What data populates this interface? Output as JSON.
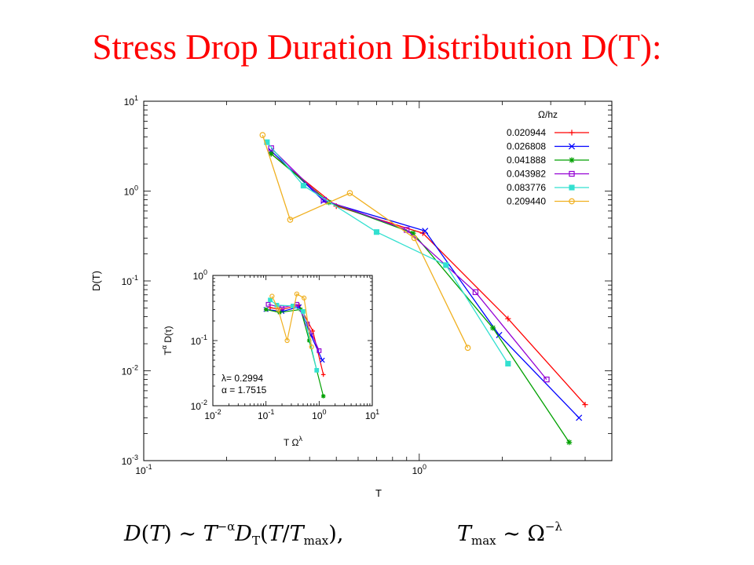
{
  "slide": {
    "title": "Stress Drop Duration Distribution D(T):"
  },
  "chart_data": [
    {
      "type": "line",
      "title": "",
      "xlabel": "T",
      "ylabel": "D(T)",
      "xscale": "log",
      "yscale": "log",
      "xlim": [
        0.1,
        5
      ],
      "ylim": [
        0.001,
        10
      ],
      "x_ticks": [
        {
          "value": 0.1,
          "base": "10",
          "exp": "-1"
        },
        {
          "value": 1,
          "base": "10",
          "exp": "0"
        }
      ],
      "y_ticks": [
        {
          "value": 10,
          "base": "10",
          "exp": "1"
        },
        {
          "value": 1,
          "base": "10",
          "exp": "0"
        },
        {
          "value": 0.1,
          "base": "10",
          "exp": "-1"
        },
        {
          "value": 0.01,
          "base": "10",
          "exp": "-2"
        },
        {
          "value": 0.001,
          "base": "10",
          "exp": "-3"
        }
      ],
      "grid": false,
      "legend": {
        "title": "Ω/hz",
        "position": "top-right"
      },
      "series": [
        {
          "name": "0.020944",
          "color": "#ff0000",
          "marker": "plus",
          "x": [
            0.29,
            0.5,
            1.03,
            2.1,
            4.0
          ],
          "y": [
            2.6,
            0.68,
            0.34,
            0.038,
            0.0042
          ]
        },
        {
          "name": "0.026808",
          "color": "#0000ff",
          "marker": "x",
          "x": [
            0.29,
            0.45,
            1.05,
            1.95,
            3.8
          ],
          "y": [
            2.8,
            0.78,
            0.36,
            0.025,
            0.003
          ]
        },
        {
          "name": "0.041888",
          "color": "#00a000",
          "marker": "star",
          "x": [
            0.29,
            0.47,
            0.95,
            1.85,
            3.5
          ],
          "y": [
            2.6,
            0.75,
            0.34,
            0.03,
            0.0016
          ]
        },
        {
          "name": "0.043982",
          "color": "#9400d3",
          "marker": "square-open",
          "x": [
            0.29,
            0.45,
            0.9,
            1.6,
            2.9
          ],
          "y": [
            3.0,
            0.8,
            0.37,
            0.075,
            0.008
          ]
        },
        {
          "name": "0.083776",
          "color": "#33e0d0",
          "marker": "square-filled",
          "x": [
            0.28,
            0.38,
            0.7,
            1.25,
            2.1
          ],
          "y": [
            3.5,
            1.15,
            0.35,
            0.15,
            0.012
          ]
        },
        {
          "name": "0.209440",
          "color": "#f0b020",
          "marker": "circle-open",
          "x": [
            0.27,
            0.34,
            0.56,
            0.96,
            1.5
          ],
          "y": [
            4.2,
            0.48,
            0.95,
            0.3,
            0.018
          ]
        }
      ]
    },
    {
      "type": "line",
      "title": "",
      "xlabel": "T Ωλ",
      "xlabel_base": "T Ω",
      "xlabel_sup": "λ",
      "ylabel": "Tα D(τ)",
      "ylabel_parts": {
        "t": "T",
        "alpha": "α",
        "rest": "D(τ)"
      },
      "xscale": "log",
      "yscale": "log",
      "xlim": [
        0.01,
        10
      ],
      "ylim": [
        0.01,
        1
      ],
      "x_ticks": [
        {
          "value": 0.01,
          "base": "10",
          "exp": "-2"
        },
        {
          "value": 0.1,
          "base": "10",
          "exp": "-1"
        },
        {
          "value": 1,
          "base": "10",
          "exp": "0"
        },
        {
          "value": 10,
          "base": "10",
          "exp": "1"
        }
      ],
      "y_ticks": [
        {
          "value": 1,
          "base": "10",
          "exp": "0"
        },
        {
          "value": 0.1,
          "base": "10",
          "exp": "-1"
        },
        {
          "value": 0.01,
          "base": "10",
          "exp": "-2"
        }
      ],
      "grid": false,
      "annotations": [
        "λ= 0.2994",
        "α = 1.7515"
      ],
      "series": [
        {
          "color": "#ff0000",
          "marker": "plus",
          "x": [
            0.12,
            0.2,
            0.42,
            0.76,
            1.2
          ],
          "y": [
            0.32,
            0.3,
            0.35,
            0.14,
            0.03
          ]
        },
        {
          "color": "#0000ff",
          "marker": "x",
          "x": [
            0.1,
            0.2,
            0.42,
            0.7,
            1.15
          ],
          "y": [
            0.3,
            0.28,
            0.33,
            0.12,
            0.05
          ]
        },
        {
          "color": "#00a000",
          "marker": "star",
          "x": [
            0.1,
            0.18,
            0.45,
            0.65,
            1.2
          ],
          "y": [
            0.3,
            0.27,
            0.3,
            0.1,
            0.014
          ]
        },
        {
          "color": "#9400d3",
          "marker": "square-open",
          "x": [
            0.11,
            0.2,
            0.38,
            0.6,
            1.0
          ],
          "y": [
            0.36,
            0.32,
            0.36,
            0.18,
            0.07
          ]
        },
        {
          "color": "#33e0d0",
          "marker": "square-filled",
          "x": [
            0.12,
            0.16,
            0.32,
            0.5,
            0.9
          ],
          "y": [
            0.42,
            0.35,
            0.34,
            0.28,
            0.035
          ]
        },
        {
          "color": "#f0b020",
          "marker": "circle-open",
          "x": [
            0.13,
            0.17,
            0.25,
            0.38,
            0.52,
            0.72
          ],
          "y": [
            0.48,
            0.3,
            0.1,
            0.52,
            0.45,
            0.08
          ]
        }
      ]
    }
  ],
  "formula": {
    "left": {
      "d": "D",
      "t1": "T",
      "sim": " ∼ ",
      "t2": "T",
      "exp": "−α",
      "calD": "D",
      "sub": "T",
      "open": "(",
      "t3": "T",
      "slash": "/",
      "t4": "T",
      "sub2": "max",
      "close": "),"
    },
    "right": {
      "t": "T",
      "sub": "max",
      "sim": " ∼ ",
      "omega": "Ω",
      "exp": "−λ"
    }
  }
}
